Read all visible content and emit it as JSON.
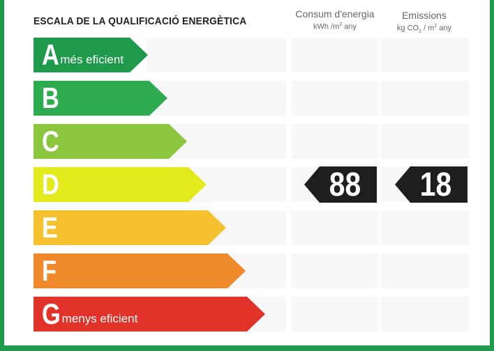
{
  "title": "ESCALA DE LA QUALIFICACIÓ ENERGÈTICA",
  "columns": [
    {
      "name": "Consum d'energia",
      "unit_pre": "kWh /m",
      "unit_sup": "2",
      "unit_post": " any"
    },
    {
      "name": "Emissions",
      "unit_pre": "kg CO",
      "unit_sub": "2",
      "unit_mid": " / m",
      "unit_sup": "2",
      "unit_post": " any"
    }
  ],
  "bands": [
    {
      "letter": "A",
      "sub": "més eficient",
      "color": "#1f9a4b"
    },
    {
      "letter": "B",
      "sub": "",
      "color": "#2eab4f"
    },
    {
      "letter": "C",
      "sub": "",
      "color": "#8cc63f"
    },
    {
      "letter": "D",
      "sub": "",
      "color": "#e3ea1c"
    },
    {
      "letter": "E",
      "sub": "",
      "color": "#f5c12e"
    },
    {
      "letter": "F",
      "sub": "",
      "color": "#ee8a2b"
    },
    {
      "letter": "G",
      "sub": "menys eficient",
      "color": "#e2332a"
    }
  ],
  "rating": {
    "band": "D",
    "energy_value": "88",
    "emissions_value": "18",
    "marker_color": "#1e1e1e"
  }
}
